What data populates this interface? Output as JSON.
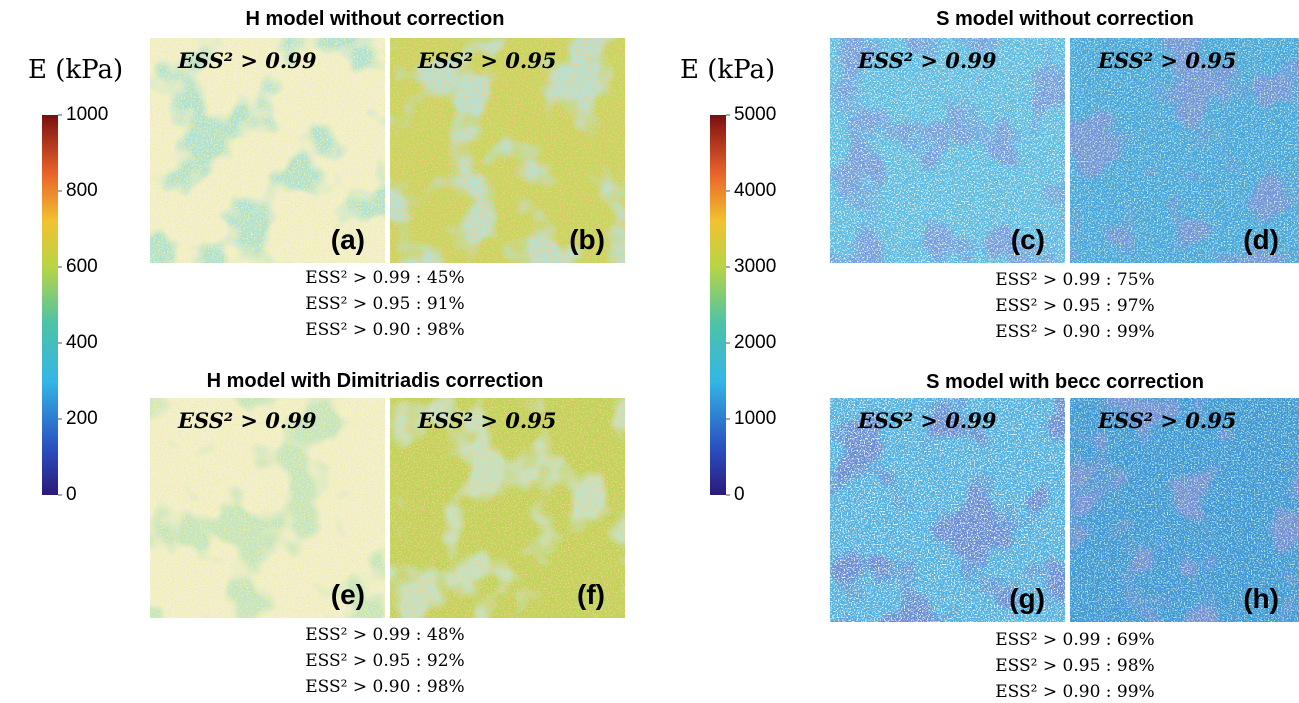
{
  "figures": [
    {
      "colorbar": {
        "label": "E (kPa)",
        "ticks": [
          0,
          200,
          400,
          600,
          800,
          1000
        ]
      },
      "sections": [
        {
          "title": "H model without correction",
          "panels": [
            {
              "threshold_label": "ESS² > 0.99",
              "letter": "(a)"
            },
            {
              "threshold_label": "ESS² > 0.95",
              "letter": "(b)"
            }
          ],
          "stats": [
            "ESS² > 0.99 : 45%",
            "ESS² > 0.95 : 91%",
            "ESS² > 0.90 : 98%"
          ]
        },
        {
          "title": "H model with Dimitriadis correction",
          "panels": [
            {
              "threshold_label": "ESS² > 0.99",
              "letter": "(e)"
            },
            {
              "threshold_label": "ESS² > 0.95",
              "letter": "(f)"
            }
          ],
          "stats": [
            "ESS² > 0.99 : 48%",
            "ESS² > 0.95 : 92%",
            "ESS² > 0.90 : 98%"
          ]
        }
      ]
    },
    {
      "colorbar": {
        "label": "E (kPa)",
        "ticks": [
          0,
          1000,
          2000,
          3000,
          4000,
          5000
        ]
      },
      "sections": [
        {
          "title": "S model without correction",
          "panels": [
            {
              "threshold_label": "ESS² > 0.99",
              "letter": "(c)"
            },
            {
              "threshold_label": "ESS² > 0.95",
              "letter": "(d)"
            }
          ],
          "stats": [
            "ESS² > 0.99 : 75%",
            "ESS² > 0.95 : 97%",
            "ESS² > 0.90 : 99%"
          ]
        },
        {
          "title": "S model with becc correction",
          "panels": [
            {
              "threshold_label": "ESS² > 0.99",
              "letter": "(g)"
            },
            {
              "threshold_label": "ESS² > 0.95",
              "letter": "(h)"
            }
          ],
          "stats": [
            "ESS² > 0.99 : 69%",
            "ESS² > 0.95 : 98%",
            "ESS² > 0.90 : 99%"
          ]
        }
      ]
    }
  ]
}
